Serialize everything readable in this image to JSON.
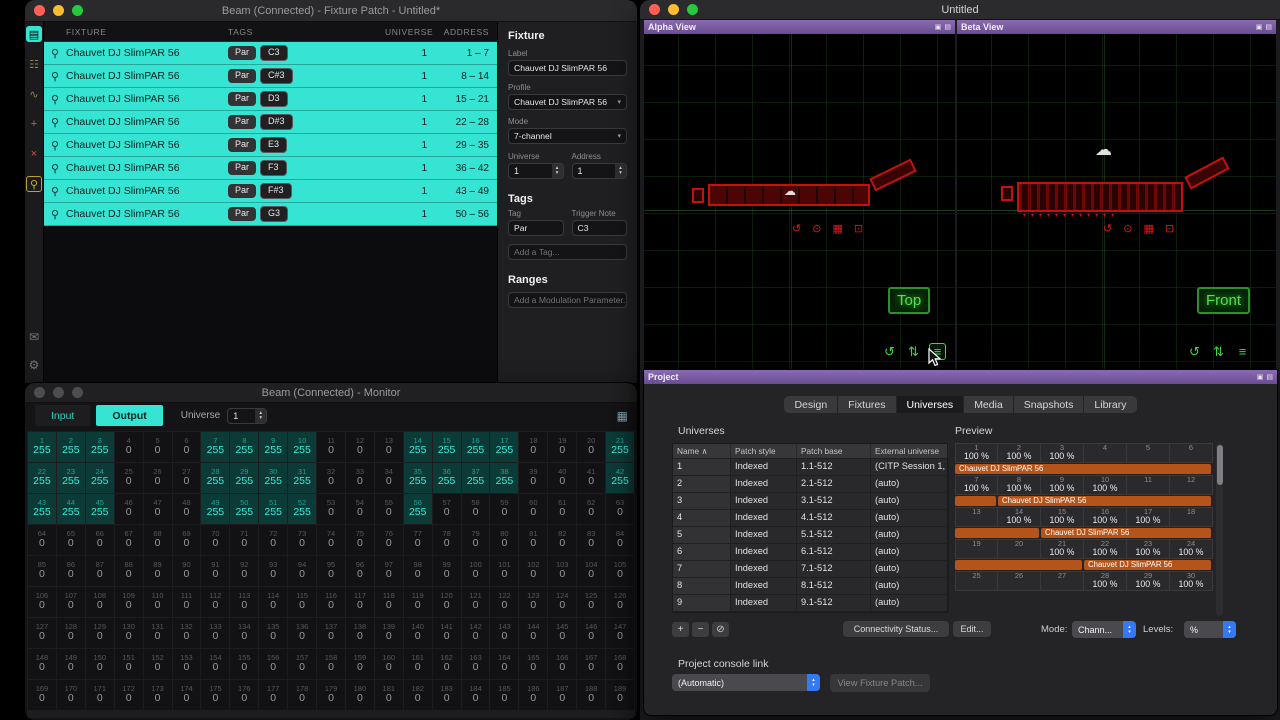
{
  "colors": {
    "accent-cyan": "#35E4D3",
    "bar-orange": "#B5541A",
    "titlebar-purple": "#77589E",
    "view-green": "#3ADB3A",
    "fixture-red": "#C11212",
    "accent-blue": "#3478F6"
  },
  "glyphs": {
    "chevron_down": "▾",
    "stepper_up": "▴",
    "stepper_down": "▾",
    "grid_icon": "▦",
    "sort_up": "∧",
    "cloud": "☁",
    "popout": "▣",
    "panel_menu": "▤"
  },
  "fixture_patch_window": {
    "title": "Beam (Connected) - Fixture Patch - Untitled*",
    "sidebar": [
      {
        "name": "fixture-list",
        "glyph": "▤",
        "active": true,
        "boxed": false
      },
      {
        "name": "patch-grid",
        "glyph": "☷",
        "active": false,
        "boxed": false
      },
      {
        "name": "waveform",
        "glyph": "∿",
        "active": false,
        "boxed": false
      },
      {
        "name": "add-fixture",
        "glyph": "+",
        "active": false,
        "boxed": false
      },
      {
        "name": "remove-fixture",
        "glyph": "×",
        "active": false,
        "boxed": false
      },
      {
        "name": "highlight-bulb",
        "glyph": "⚲",
        "active": false,
        "boxed": true
      }
    ],
    "sidebar_bottom": [
      {
        "name": "feedback",
        "glyph": "✉"
      },
      {
        "name": "settings-gear",
        "glyph": "⚙"
      }
    ],
    "table": {
      "row_icon": "⚲",
      "columns": {
        "fixture": "FIXTURE",
        "tags": "TAGS",
        "universe": "UNIVERSE",
        "address": "ADDRESS"
      },
      "rows": [
        {
          "name": "Chauvet DJ SlimPAR 56",
          "tag": "Par",
          "note": "C3",
          "universe": "1",
          "address": "1 – 7"
        },
        {
          "name": "Chauvet DJ SlimPAR 56",
          "tag": "Par",
          "note": "C#3",
          "universe": "1",
          "address": "8 – 14"
        },
        {
          "name": "Chauvet DJ SlimPAR 56",
          "tag": "Par",
          "note": "D3",
          "universe": "1",
          "address": "15 – 21"
        },
        {
          "name": "Chauvet DJ SlimPAR 56",
          "tag": "Par",
          "note": "D#3",
          "universe": "1",
          "address": "22 – 28"
        },
        {
          "name": "Chauvet DJ SlimPAR 56",
          "tag": "Par",
          "note": "E3",
          "universe": "1",
          "address": "29 – 35"
        },
        {
          "name": "Chauvet DJ SlimPAR 56",
          "tag": "Par",
          "note": "F3",
          "universe": "1",
          "address": "36 – 42"
        },
        {
          "name": "Chauvet DJ SlimPAR 56",
          "tag": "Par",
          "note": "F#3",
          "universe": "1",
          "address": "43 – 49"
        },
        {
          "name": "Chauvet DJ SlimPAR 56",
          "tag": "Par",
          "note": "G3",
          "universe": "1",
          "address": "50 – 56"
        }
      ]
    },
    "inspector": {
      "section_fixture": "Fixture",
      "label_field_label": "Label",
      "label_value": "Chauvet DJ SlimPAR 56",
      "profile_label": "Profile",
      "profile_value": "Chauvet DJ SlimPAR 56",
      "mode_label": "Mode",
      "mode_value": "7-channel",
      "universe_label": "Universe",
      "universe_value": "1",
      "address_label": "Address",
      "address_value": "1",
      "section_tags": "Tags",
      "tag_label": "Tag",
      "tag_value": "Par",
      "trigger_note_label": "Trigger Note",
      "trigger_note_value": "C3",
      "add_tag_placeholder": "Add a Tag...",
      "section_ranges": "Ranges",
      "add_range_placeholder": "Add a Modulation Parameter..."
    }
  },
  "monitor_window": {
    "title": "Beam (Connected) - Monitor",
    "input_tab": "Input",
    "output_tab": "Output",
    "universe_label": "Universe",
    "universe_value": "1",
    "grid": {
      "columns": 21,
      "values": [
        255,
        255,
        255,
        0,
        0,
        0,
        255,
        255,
        255,
        255,
        0,
        0,
        0,
        255,
        255,
        255,
        255,
        0,
        0,
        0,
        255,
        255,
        255,
        255,
        0,
        0,
        0,
        255,
        255,
        255,
        255,
        0,
        0,
        0,
        255,
        255,
        255,
        255,
        0,
        0,
        0,
        255,
        255,
        255,
        255,
        0,
        0,
        0,
        255,
        255,
        255,
        255,
        0,
        0,
        0,
        255,
        0,
        0,
        0,
        0,
        0,
        0,
        0,
        0,
        0,
        0,
        0,
        0,
        0,
        0,
        0,
        0,
        0,
        0,
        0,
        0,
        0,
        0,
        0,
        0,
        0,
        0,
        0,
        0,
        0,
        0,
        0,
        0,
        0,
        0,
        0,
        0,
        0,
        0,
        0,
        0,
        0,
        0,
        0,
        0,
        0,
        0,
        0,
        0,
        0,
        0,
        0,
        0,
        0,
        0,
        0,
        0,
        0,
        0,
        0,
        0,
        0,
        0,
        0,
        0,
        0,
        0,
        0,
        0,
        0,
        0,
        0,
        0,
        0,
        0,
        0,
        0,
        0,
        0,
        0,
        0,
        0,
        0,
        0,
        0,
        0,
        0,
        0,
        0,
        0,
        0,
        0,
        0,
        0,
        0,
        0,
        0,
        0,
        0,
        0,
        0,
        0,
        0,
        0,
        0,
        0,
        0,
        0,
        0,
        0,
        0,
        0,
        0,
        0,
        0,
        0,
        0,
        0,
        0,
        0,
        0,
        0,
        0,
        0,
        0,
        0,
        0,
        0,
        0,
        0,
        0,
        0,
        0,
        0
      ]
    }
  },
  "viewer_window": {
    "title": "Untitled",
    "alpha": {
      "title": "Alpha View",
      "view_label": "Top",
      "fixture_icons": [
        {
          "name": "rotate",
          "glyph": "↺"
        },
        {
          "name": "focus",
          "glyph": "⊙"
        },
        {
          "name": "grid",
          "glyph": "▦"
        },
        {
          "name": "frame",
          "glyph": "⊡"
        }
      ],
      "tools": [
        {
          "name": "orbit",
          "glyph": "↺",
          "highlight": false
        },
        {
          "name": "pan",
          "glyph": "⇅",
          "highlight": false
        },
        {
          "name": "view-menu",
          "glyph": "≡",
          "highlight": true
        }
      ]
    },
    "beta": {
      "title": "Beta View",
      "view_label": "Front",
      "ticks": "▾▾▾▾▾▾▾▾▾▾▾▾",
      "fixture_icons": [
        {
          "name": "rotate",
          "glyph": "↺"
        },
        {
          "name": "focus",
          "glyph": "⊙"
        },
        {
          "name": "grid",
          "glyph": "▦"
        },
        {
          "name": "frame",
          "glyph": "⊡"
        }
      ],
      "tools": [
        {
          "name": "orbit",
          "glyph": "↺",
          "highlight": false
        },
        {
          "name": "pan",
          "glyph": "⇅",
          "highlight": false
        },
        {
          "name": "view-menu",
          "glyph": "≡",
          "highlight": false
        }
      ]
    }
  },
  "project_window": {
    "title": "Project",
    "tabs": [
      "Design",
      "Fixtures",
      "Universes",
      "Media",
      "Snapshots",
      "Library"
    ],
    "active_tab": "Universes",
    "universes": {
      "label": "Universes",
      "columns": [
        "Name",
        "Patch style",
        "Patch base",
        "External universe"
      ],
      "rows": [
        {
          "name": "1",
          "style": "Indexed",
          "base": "1.1-512",
          "external": "(CITP Session 1,"
        },
        {
          "name": "2",
          "style": "Indexed",
          "base": "2.1-512",
          "external": "(auto)"
        },
        {
          "name": "3",
          "style": "Indexed",
          "base": "3.1-512",
          "external": "(auto)"
        },
        {
          "name": "4",
          "style": "Indexed",
          "base": "4.1-512",
          "external": "(auto)"
        },
        {
          "name": "5",
          "style": "Indexed",
          "base": "5.1-512",
          "external": "(auto)"
        },
        {
          "name": "6",
          "style": "Indexed",
          "base": "6.1-512",
          "external": "(auto)"
        },
        {
          "name": "7",
          "style": "Indexed",
          "base": "7.1-512",
          "external": "(auto)"
        },
        {
          "name": "8",
          "style": "Indexed",
          "base": "8.1-512",
          "external": "(auto)"
        },
        {
          "name": "9",
          "style": "Indexed",
          "base": "9.1-512",
          "external": "(auto)"
        }
      ],
      "add_button": "+",
      "remove_button": "−",
      "disable_button": "⊘",
      "connectivity_button": "Connectivity Status...",
      "edit_button": "Edit...",
      "mode_label": "Mode:",
      "mode_value": "Chann...",
      "levels_label": "Levels:",
      "levels_value": "%"
    },
    "preview": {
      "label": "Preview",
      "rows": [
        {
          "channels": [
            "1",
            "2",
            "3",
            "4",
            "5",
            "6"
          ],
          "values": [
            "100 %",
            "100 %",
            "100 %",
            "",
            "",
            ""
          ],
          "bars": [
            {
              "offset": 0,
              "span": 6,
              "label": "Chauvet DJ SlimPAR 56"
            }
          ]
        },
        {
          "channels": [
            "7",
            "8",
            "9",
            "10",
            "11",
            "12"
          ],
          "values": [
            "100 %",
            "100 %",
            "100 %",
            "100 %",
            "",
            ""
          ],
          "bars": [
            {
              "offset": 0,
              "span": 1,
              "label": ""
            },
            {
              "offset": 1,
              "span": 5,
              "label": "Chauvet DJ SlimPAR 56"
            }
          ]
        },
        {
          "channels": [
            "13",
            "14",
            "15",
            "16",
            "17",
            "18"
          ],
          "values": [
            "",
            "100 %",
            "100 %",
            "100 %",
            "100 %",
            ""
          ],
          "bars": [
            {
              "offset": 0,
              "span": 2,
              "label": ""
            },
            {
              "offset": 2,
              "span": 4,
              "label": "Chauvet DJ SlimPAR 56"
            }
          ]
        },
        {
          "channels": [
            "19",
            "20",
            "21",
            "22",
            "23",
            "24"
          ],
          "values": [
            "",
            "",
            "100 %",
            "100 %",
            "100 %",
            "100 %"
          ],
          "bars": [
            {
              "offset": 0,
              "span": 3,
              "label": ""
            },
            {
              "offset": 3,
              "span": 3,
              "label": "Chauvet DJ SlimPAR 56"
            }
          ]
        },
        {
          "channels": [
            "25",
            "26",
            "27",
            "28",
            "29",
            "30"
          ],
          "values": [
            "",
            "",
            "",
            "100 %",
            "100 %",
            "100 %"
          ],
          "bars": []
        }
      ]
    },
    "console": {
      "label": "Project console link",
      "value": "(Automatic)",
      "view_patch_button": "View Fixture Patch..."
    }
  }
}
